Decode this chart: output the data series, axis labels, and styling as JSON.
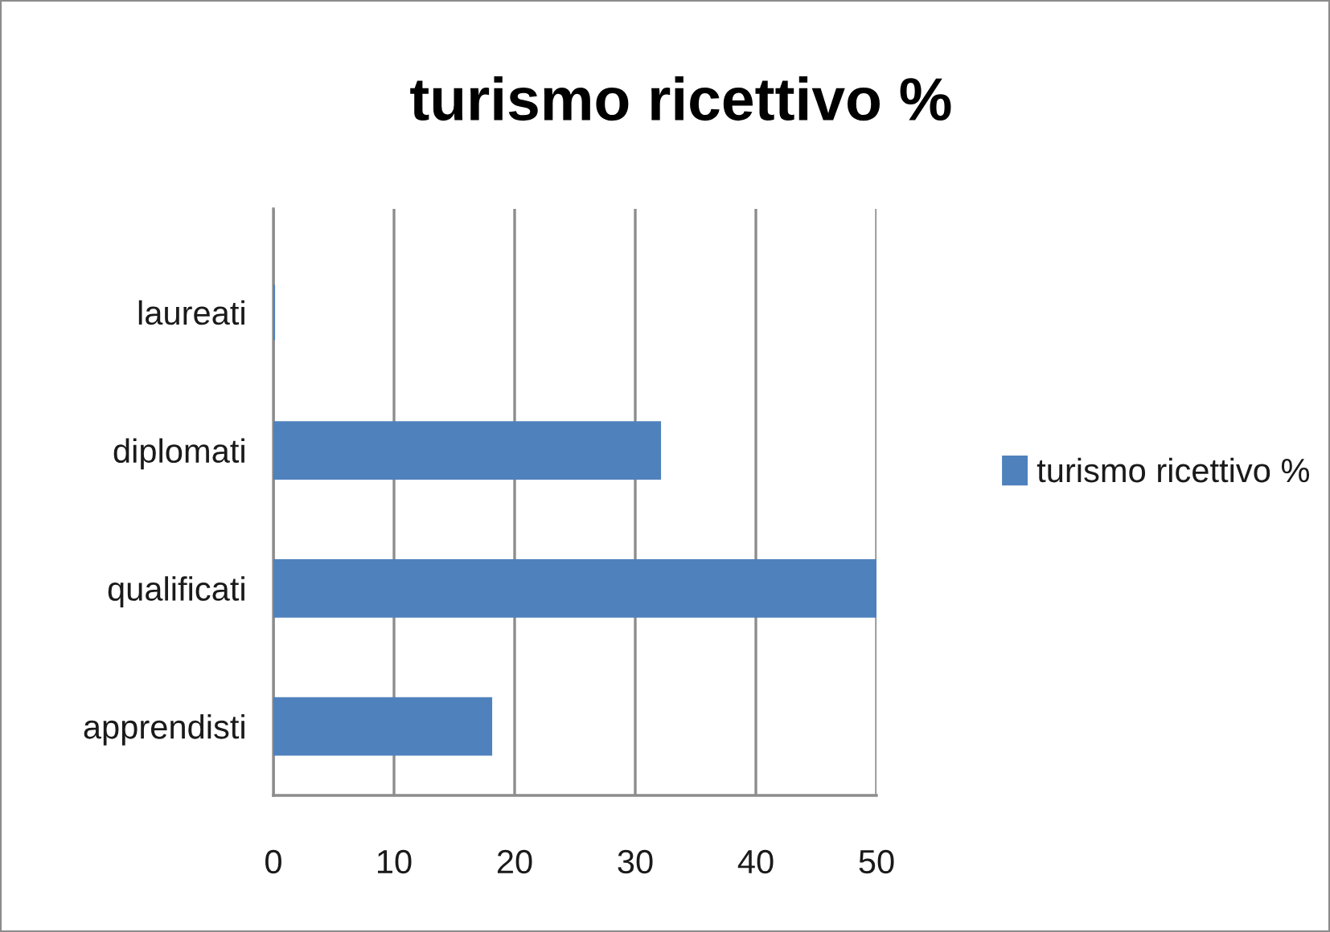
{
  "chart_data": {
    "type": "bar",
    "orientation": "horizontal",
    "title": "turismo ricettivo %",
    "categories": [
      "laureati",
      "diplomati",
      "qualificati",
      "apprendisti"
    ],
    "series": [
      {
        "name": "turismo ricettivo %",
        "color": "#4f81bd",
        "values": [
          0,
          32,
          50,
          18
        ]
      }
    ],
    "xlim": [
      0,
      50
    ],
    "xticks": [
      0,
      10,
      20,
      30,
      40,
      50
    ],
    "grid": "x",
    "legend": "right"
  }
}
